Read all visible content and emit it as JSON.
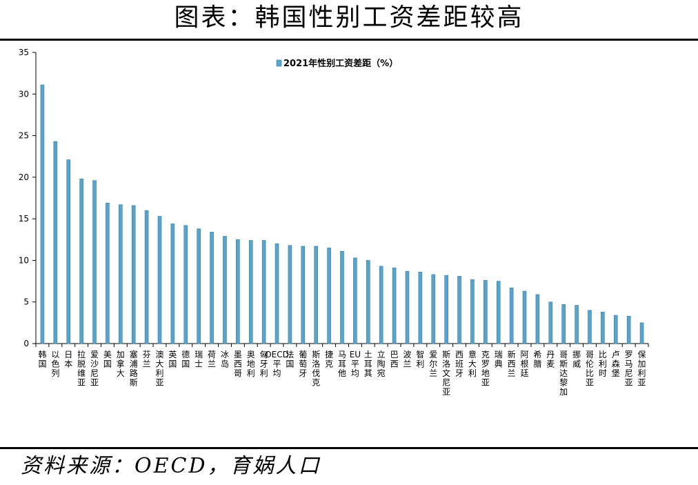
{
  "header": {
    "title": "图表：韩国性别工资差距较高"
  },
  "footer": {
    "source": "资料来源：OECD，育娲人口"
  },
  "colors": {
    "bar": "#5ba3c9",
    "bar_edge": "#2f7fae",
    "axis": "#000000"
  },
  "chart_data": {
    "type": "bar",
    "title": "",
    "xlabel": "",
    "ylabel": "",
    "ylim": [
      0,
      35
    ],
    "yticks": [
      0,
      5,
      10,
      15,
      20,
      25,
      30,
      35
    ],
    "legend_position": "top-center",
    "grid": false,
    "categories": [
      "韩国",
      "以色列",
      "日本",
      "拉脱维亚",
      "爱沙尼亚",
      "美国",
      "加拿大",
      "塞浦路斯",
      "芬兰",
      "澳大利亚",
      "英国",
      "德国",
      "瑞士",
      "荷兰",
      "冰岛",
      "墨西哥",
      "奥地利",
      "匈牙利",
      "OECD平均",
      "法国",
      "葡萄牙",
      "斯洛伐克",
      "捷克",
      "马耳他",
      "EU平均",
      "土耳其",
      "立陶宛",
      "巴西",
      "波兰",
      "智利",
      "爱尔兰",
      "斯洛文尼亚",
      "西班牙",
      "意大利",
      "克罗地亚",
      "瑞典",
      "新西兰",
      "阿根廷",
      "希腊",
      "丹麦",
      "哥斯达黎加",
      "挪威",
      "哥伦比亚",
      "比利时",
      "卢森堡",
      "罗马尼亚",
      "保加利亚"
    ],
    "series": [
      {
        "name": "2021年性别工资差距（%）",
        "values": [
          31.1,
          24.3,
          22.1,
          19.8,
          19.6,
          16.9,
          16.7,
          16.6,
          16.0,
          15.3,
          14.4,
          14.2,
          13.8,
          13.4,
          12.9,
          12.5,
          12.4,
          12.4,
          12.0,
          11.8,
          11.7,
          11.7,
          11.5,
          11.1,
          10.3,
          10.0,
          9.3,
          9.1,
          8.7,
          8.6,
          8.3,
          8.2,
          8.1,
          7.7,
          7.6,
          7.5,
          6.7,
          6.3,
          5.9,
          5.0,
          4.7,
          4.6,
          4.0,
          3.8,
          3.4,
          3.3,
          2.5
        ]
      }
    ]
  }
}
